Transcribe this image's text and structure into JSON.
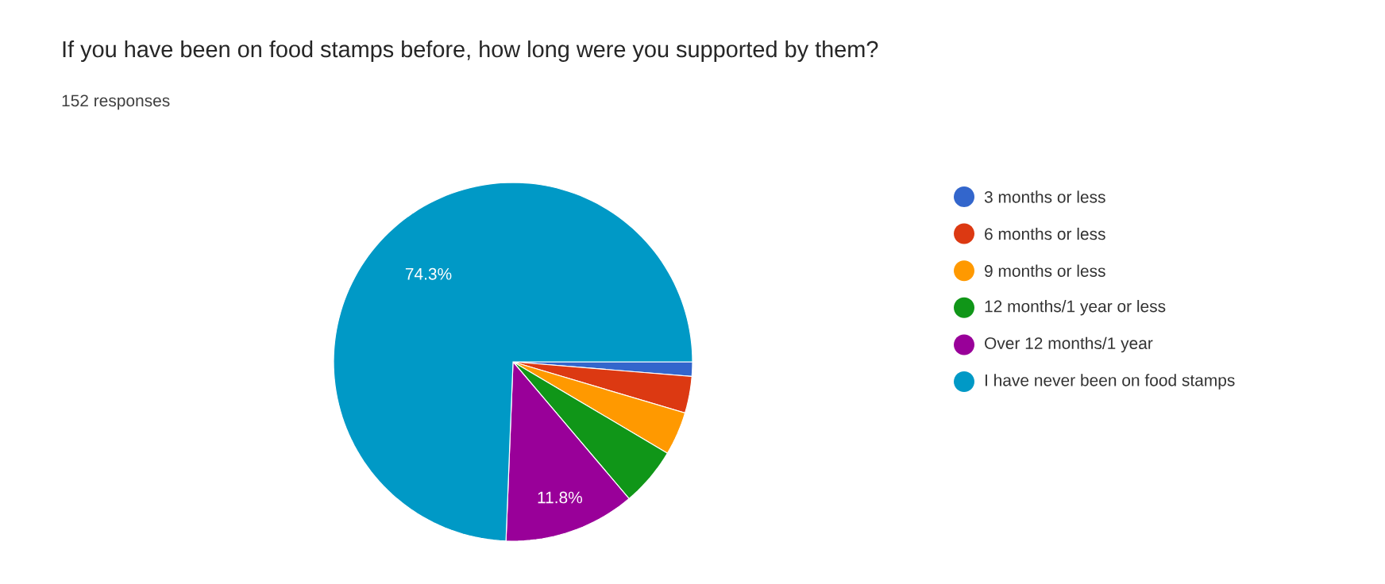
{
  "chart_data": {
    "type": "pie",
    "title": "If you have been on food stamps before, how long were you supported by them?",
    "subtitle": "152 responses",
    "categories": [
      "3 months or less",
      "6 months or less",
      "9 months or less",
      "12 months/1 year or less",
      "Over 12 months/1 year",
      "I have never been on food stamps"
    ],
    "values": [
      1.3,
      3.3,
      3.9,
      5.3,
      11.8,
      74.3
    ],
    "colors": [
      "#3366cc",
      "#dc3912",
      "#ff9900",
      "#109618",
      "#990099",
      "#0099c6"
    ],
    "value_labels": [
      null,
      null,
      null,
      null,
      "11.8%",
      "74.3%"
    ],
    "legend": "right"
  }
}
